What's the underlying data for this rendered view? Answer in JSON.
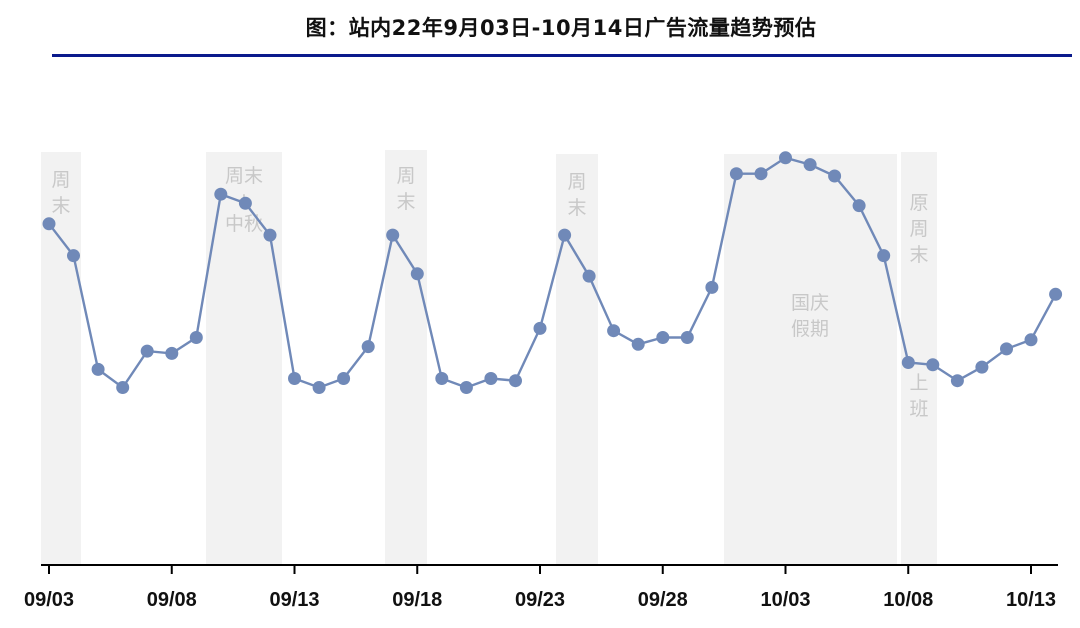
{
  "title": "图：站内22年9月03日-10月14日广告流量趋势预估",
  "chart_data": {
    "type": "line",
    "title": "图：站内22年9月03日-10月14日广告流量趋势预估",
    "xlabel": "",
    "ylabel": "",
    "y_axis_shown": false,
    "ylim": [
      0,
      100
    ],
    "grid": false,
    "x_ticks": [
      "09/03",
      "09/08",
      "09/13",
      "09/18",
      "09/23",
      "09/28",
      "10/03",
      "10/08",
      "10/13"
    ],
    "x": [
      "09/03",
      "09/04",
      "09/05",
      "09/06",
      "09/07",
      "09/08",
      "09/09",
      "09/10",
      "09/11",
      "09/12",
      "09/13",
      "09/14",
      "09/15",
      "09/16",
      "09/17",
      "09/18",
      "09/19",
      "09/20",
      "09/21",
      "09/22",
      "09/23",
      "09/24",
      "09/25",
      "09/26",
      "09/27",
      "09/28",
      "09/29",
      "09/30",
      "10/01",
      "10/02",
      "10/03",
      "10/04",
      "10/05",
      "10/06",
      "10/07",
      "10/08",
      "10/09",
      "10/10",
      "10/11",
      "10/12",
      "10/13",
      "10/14"
    ],
    "series": [
      {
        "name": "",
        "color": "#7089b8",
        "values": [
          75,
          68,
          43,
          39,
          47,
          46.5,
          50,
          81.5,
          79.5,
          72.5,
          41,
          39,
          41,
          48,
          72.5,
          64,
          41,
          39,
          41,
          40.5,
          52,
          72.5,
          63.5,
          51.5,
          48.5,
          50,
          50,
          61,
          86,
          86,
          89.5,
          88,
          85.5,
          79,
          68,
          44.5,
          44,
          40.5,
          43.5,
          47.5,
          49.5,
          59.5
        ]
      }
    ],
    "bands": [
      {
        "label": "周\n末",
        "from": "09/03",
        "to": "09/04"
      },
      {
        "label": "周末\n+\n中秋",
        "from": "09/10",
        "to": "09/12"
      },
      {
        "label": "周\n末",
        "from": "09/17",
        "to": "09/18"
      },
      {
        "label": "周\n末",
        "from": "09/24",
        "to": "09/25"
      },
      {
        "label": "国庆\n假期",
        "from": "10/01",
        "to": "10/07"
      },
      {
        "label": "原\n周\n末",
        "from": "10/08",
        "to": "10/09"
      },
      {
        "label": "上\n班",
        "from": "10/08",
        "to": "10/09"
      }
    ],
    "band_color": "#f2f2f2",
    "marker_color": "#7089b8",
    "axis_color": "#000000"
  }
}
